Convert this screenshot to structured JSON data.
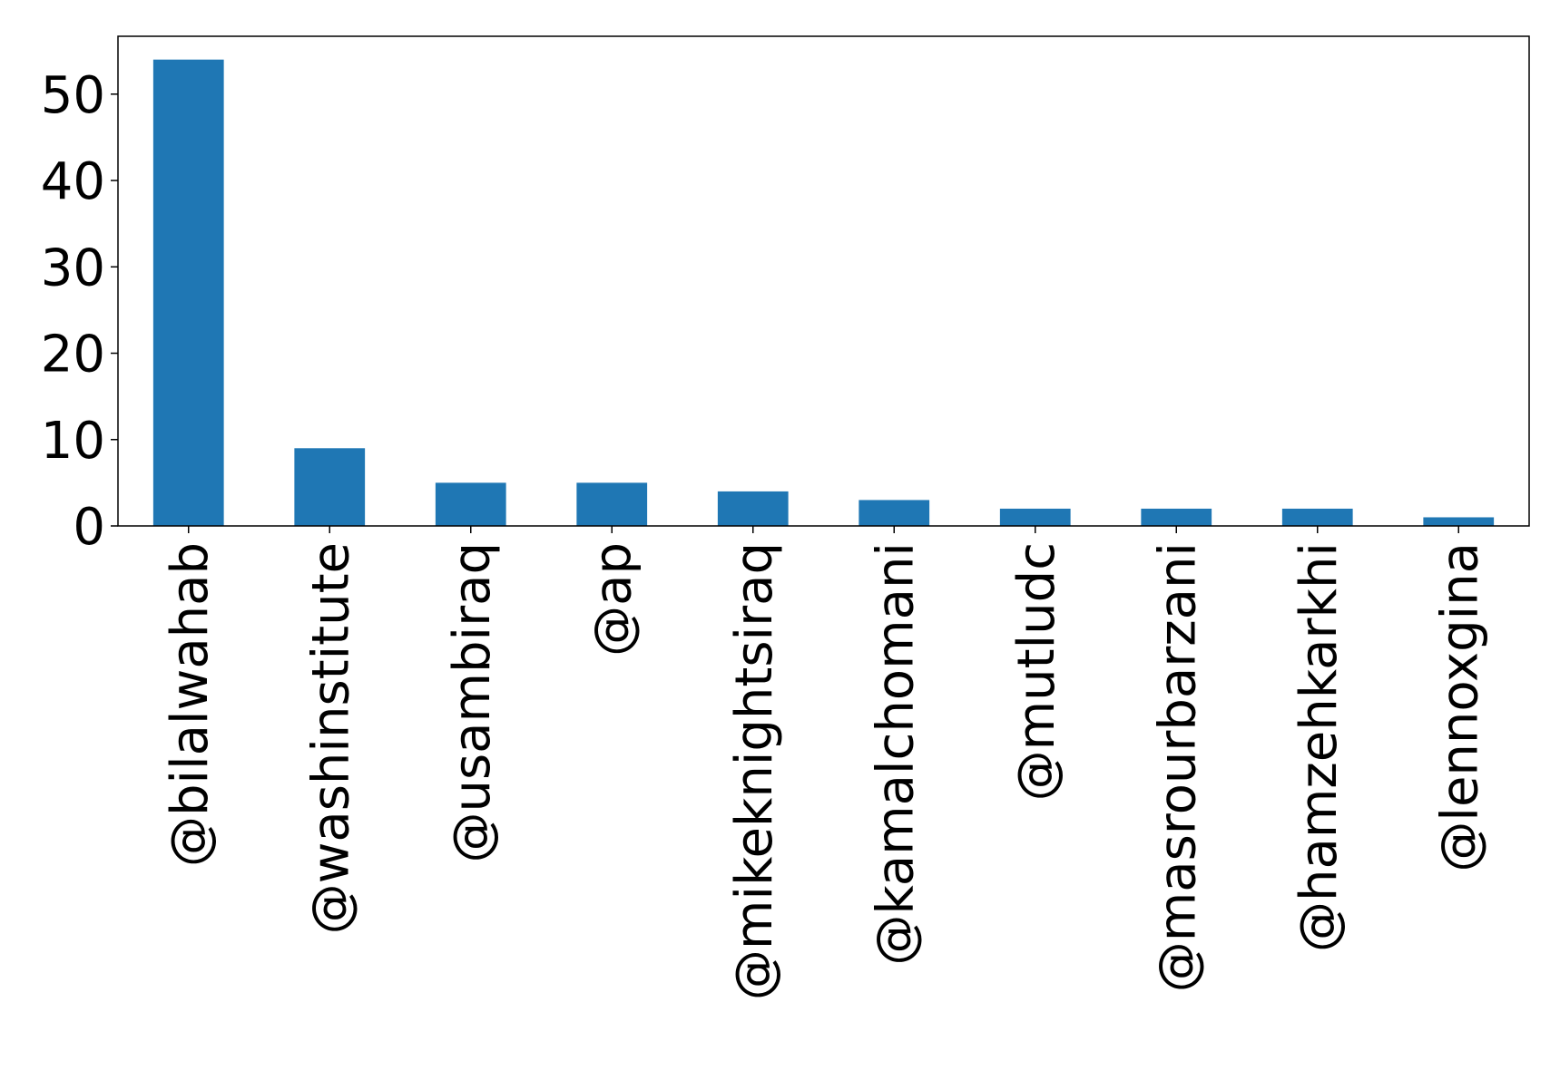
{
  "chart_data": {
    "type": "bar",
    "title": "",
    "xlabel": "",
    "ylabel": "",
    "categories": [
      "@bilalwahab",
      "@washinstitute",
      "@usambiraq",
      "@ap",
      "@mikeknightsiraq",
      "@kamalchomani",
      "@mutludc",
      "@masrourbarzani",
      "@hamzehkarkhi",
      "@lennoxgina"
    ],
    "values": [
      54,
      9,
      5,
      5,
      4,
      3,
      2,
      2,
      2,
      1
    ],
    "ylim": [
      0,
      56.7
    ],
    "yticks": [
      "0",
      "10",
      "20",
      "30",
      "40",
      "50"
    ],
    "bar_color": "#1f77b4",
    "grid": false,
    "legend": "none"
  }
}
